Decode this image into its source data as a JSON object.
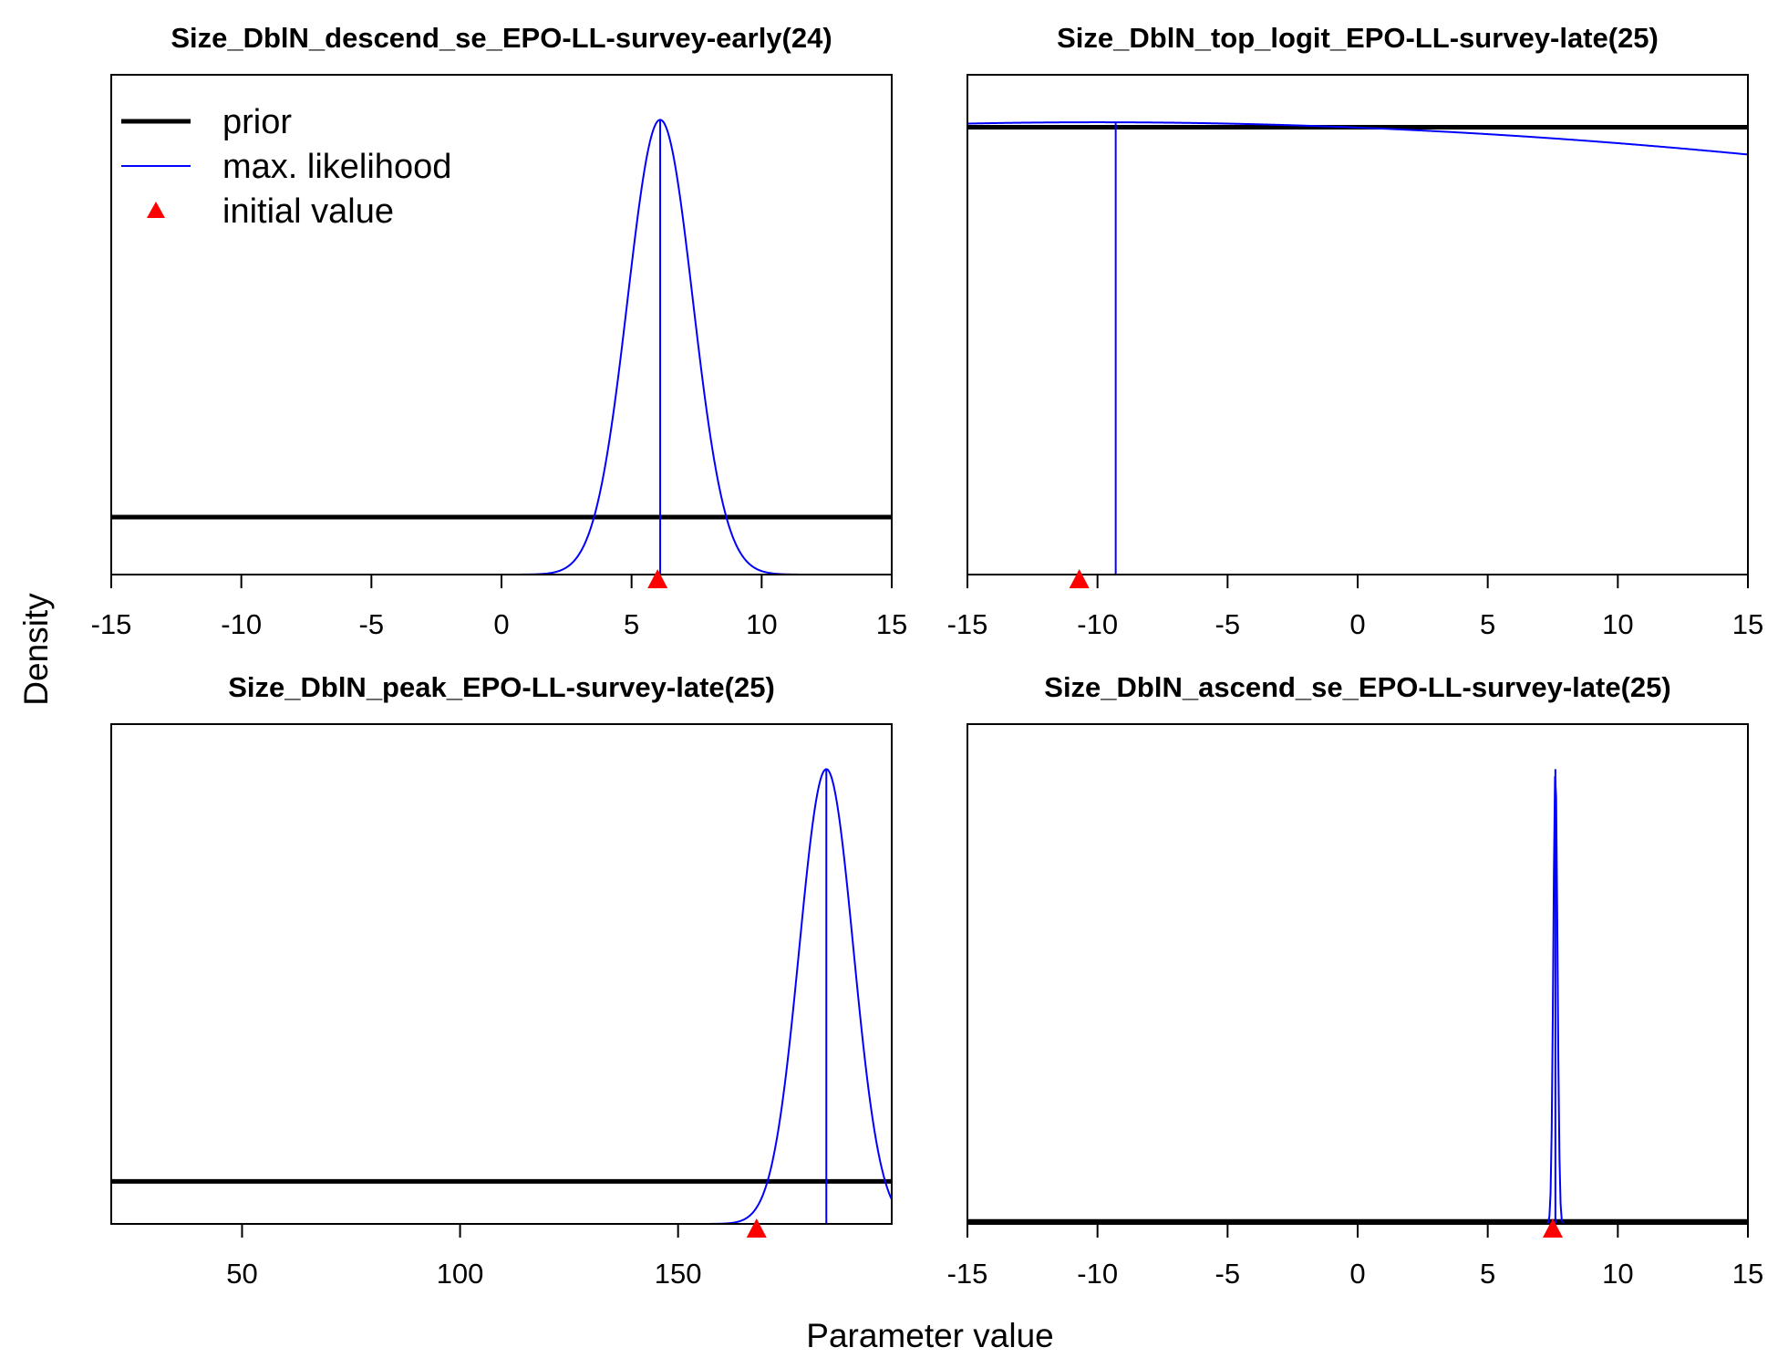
{
  "figure": {
    "ylabel": "Density",
    "xlabel": "Parameter value",
    "legend": {
      "placement": "top-left of first panel",
      "items": [
        {
          "label": "prior",
          "color": "#000000",
          "kind": "thick-line"
        },
        {
          "label": "max. likelihood",
          "color": "#0000ff",
          "kind": "line"
        },
        {
          "label": "initial value",
          "color": "#ff0000",
          "kind": "triangle"
        }
      ]
    }
  },
  "chart_data": [
    {
      "type": "line",
      "title": "Size_DblN_descend_se_EPO-LL-survey-early(24)",
      "xlim": [
        -15,
        15
      ],
      "xticks": [
        -15,
        -10,
        -5,
        0,
        5,
        10,
        15
      ],
      "prior_level": 0.115,
      "likelihood": {
        "kind": "normal",
        "mean": 6.1,
        "sd": 1.25,
        "peak_level": 0.91
      },
      "mle": 6.1,
      "initial_value": 6.0
    },
    {
      "type": "line",
      "title": "Size_DblN_top_logit_EPO-LL-survey-late(25)",
      "xlim": [
        -15,
        15
      ],
      "xticks": [
        -15,
        -10,
        -5,
        0,
        5,
        10,
        15
      ],
      "prior_level": 0.895,
      "likelihood": {
        "kind": "broad",
        "mean": -10,
        "sd": 65,
        "peak_level": 0.905
      },
      "mle": -9.3,
      "initial_value": -10.7
    },
    {
      "type": "line",
      "title": "Size_DblN_peak_EPO-LL-survey-late(25)",
      "xlim": [
        20,
        199
      ],
      "xticks": [
        50,
        100,
        150
      ],
      "prior_level": 0.085,
      "likelihood": {
        "kind": "normal",
        "mean": 184,
        "sd": 6.2,
        "peak_level": 0.91
      },
      "mle": 184,
      "initial_value": 168
    },
    {
      "type": "line",
      "title": "Size_DblN_ascend_se_EPO-LL-survey-late(25)",
      "xlim": [
        -15,
        15
      ],
      "xticks": [
        -15,
        -10,
        -5,
        0,
        5,
        10,
        15
      ],
      "prior_level": 0.005,
      "likelihood": {
        "kind": "normal",
        "mean": 7.6,
        "sd": 0.08,
        "peak_level": 0.91
      },
      "mle": 7.6,
      "initial_value": 7.5
    }
  ]
}
